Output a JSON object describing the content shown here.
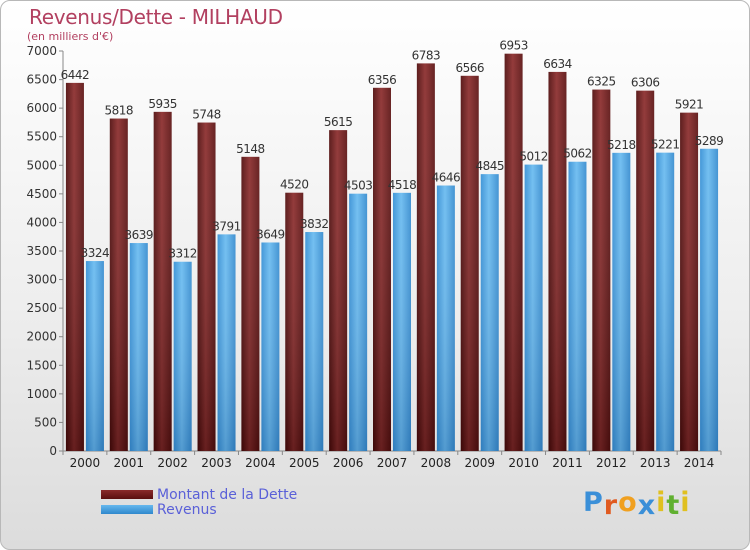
{
  "header": {
    "title": "Revenus/Dette - MILHAUD",
    "subtitle": "(en milliers d'€)"
  },
  "legend": {
    "debt_label": "Montant de la Dette",
    "revenue_label": "Revenus"
  },
  "logo": {
    "text": "Proxiti",
    "letters": [
      "P",
      "r",
      "o",
      "x",
      "i",
      "t",
      "i"
    ],
    "colors": [
      "#3a8fd8",
      "#e05a20",
      "#f0a020",
      "#3a8fd8",
      "#e0c020",
      "#60b030",
      "#e0c020"
    ]
  },
  "colors": {
    "debt": "#6e1a1a",
    "revenue": "#3d9ae0",
    "title": "#b24060",
    "legend_text": "#5a60d8"
  },
  "chart_data": {
    "type": "bar",
    "title": "Revenus/Dette - MILHAUD",
    "subtitle": "(en milliers d'€)",
    "xlabel": "",
    "ylabel": "",
    "ylim": [
      0,
      7000
    ],
    "yticks": [
      0,
      500,
      1000,
      1500,
      2000,
      2500,
      3000,
      3500,
      4000,
      4500,
      5000,
      5500,
      6000,
      6500,
      7000
    ],
    "grid": false,
    "legend_position": "bottom-left",
    "categories": [
      "2000",
      "2001",
      "2002",
      "2003",
      "2004",
      "2005",
      "2006",
      "2007",
      "2008",
      "2009",
      "2010",
      "2011",
      "2012",
      "2013",
      "2014"
    ],
    "series": [
      {
        "name": "Montant de la Dette",
        "values": [
          6442,
          5818,
          5935,
          5748,
          5148,
          4520,
          5615,
          6356,
          6783,
          6566,
          6953,
          6634,
          6325,
          6306,
          5921
        ]
      },
      {
        "name": "Revenus",
        "values": [
          3324,
          3639,
          3312,
          3791,
          3649,
          3832,
          4503,
          4518,
          4646,
          4845,
          5012,
          5062,
          5218,
          5221,
          5289
        ]
      }
    ]
  }
}
